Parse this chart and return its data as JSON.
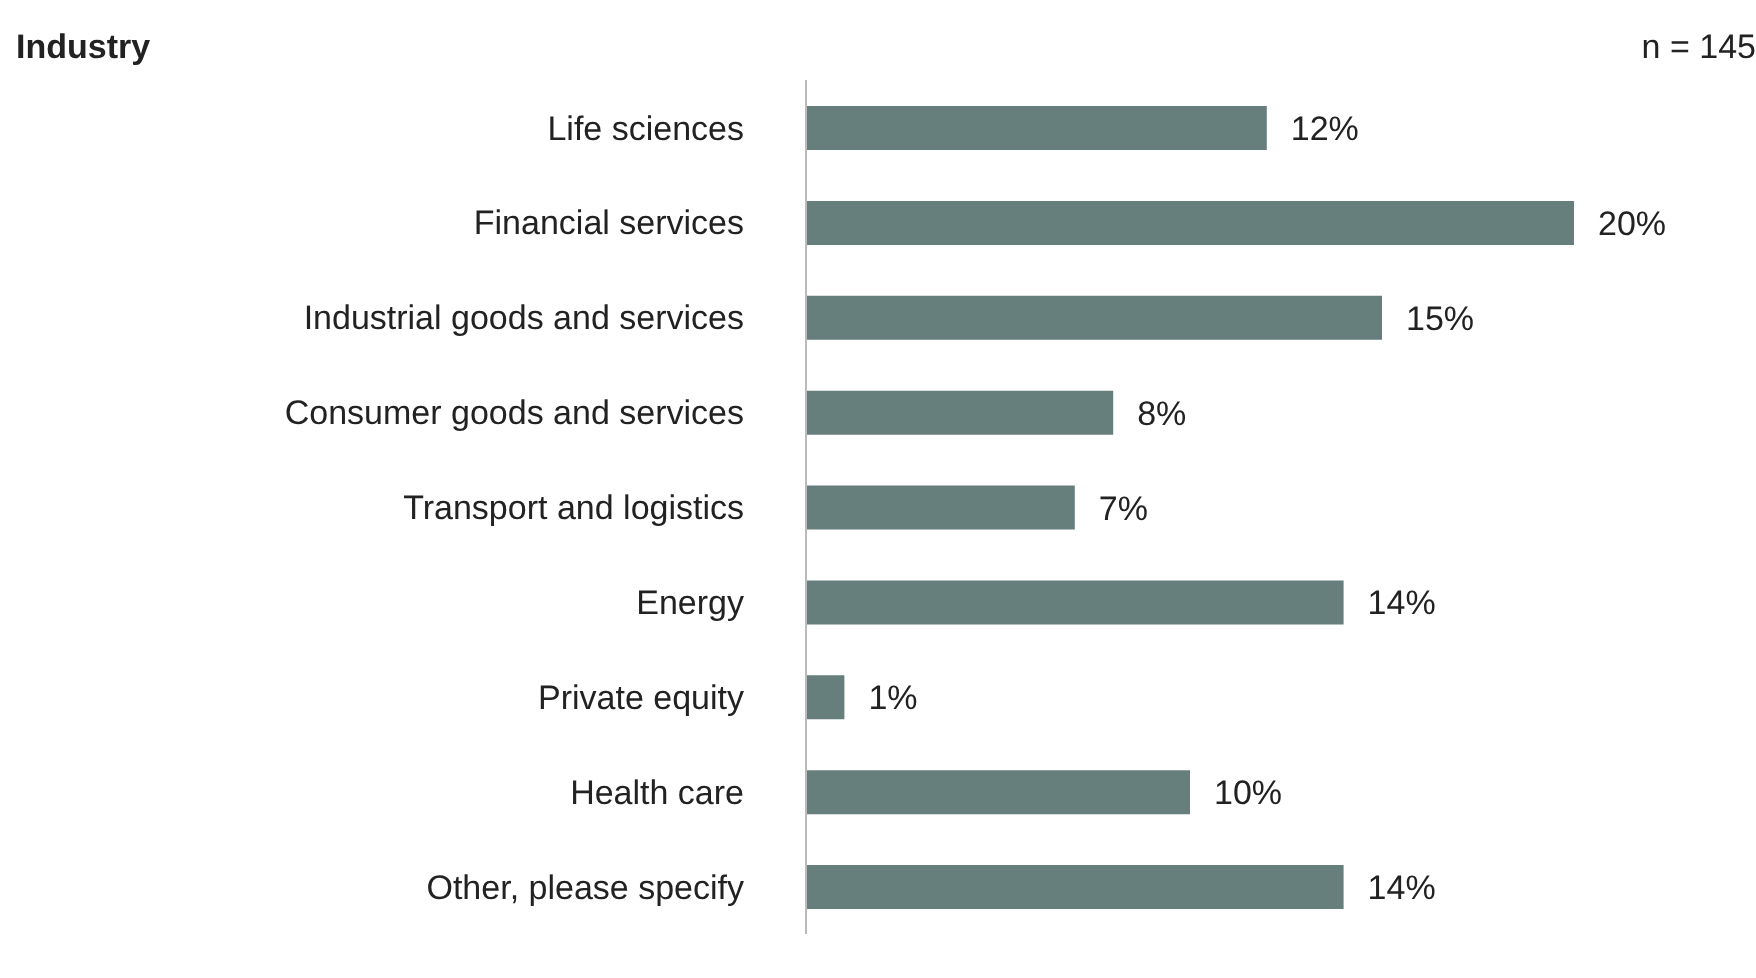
{
  "chart_data": {
    "type": "bar",
    "orientation": "horizontal",
    "title": "Industry",
    "annotations": [
      "n = 145"
    ],
    "categories": [
      "Life sciences",
      "Financial services",
      "Industrial goods and services",
      "Consumer goods and services",
      "Transport and logistics",
      "Energy",
      "Private equity",
      "Health care",
      "Other, please specify"
    ],
    "values": [
      12,
      20,
      15,
      8,
      7,
      14,
      1,
      10,
      14
    ],
    "value_labels": [
      "12%",
      "20%",
      "15%",
      "8%",
      "7%",
      "14%",
      "1%",
      "10%",
      "14%"
    ],
    "color": "#667f7c",
    "tick_labels": "y"
  }
}
